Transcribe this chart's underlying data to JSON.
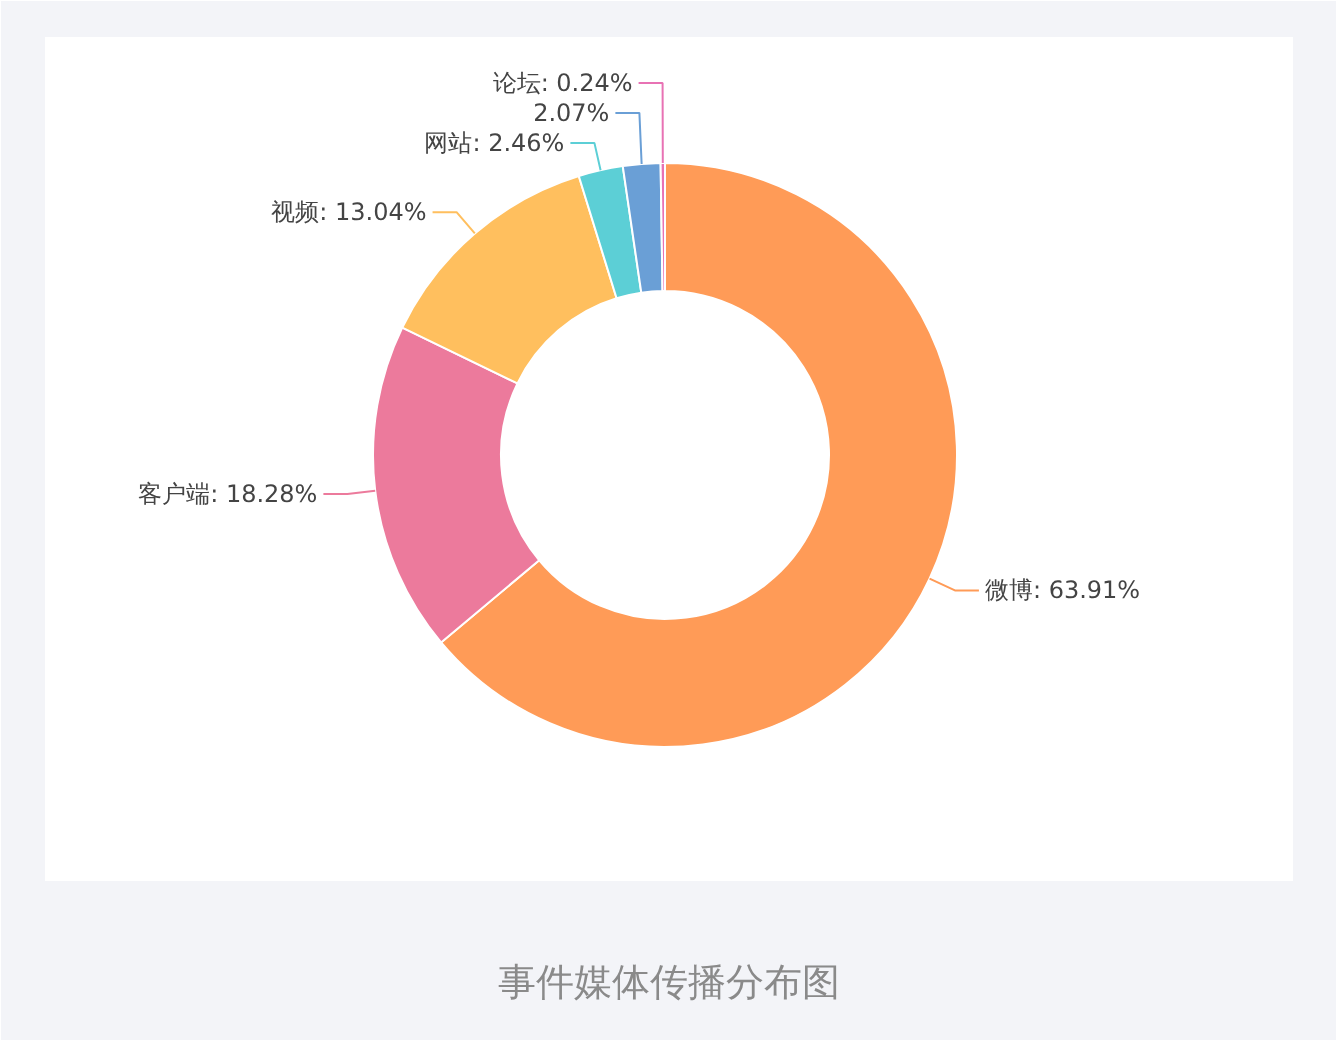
{
  "chart_data": {
    "type": "donut",
    "title": "事件媒体传播分布图",
    "categories": [
      "微博",
      "客户端",
      "视频",
      "网站",
      null,
      "论坛"
    ],
    "values": [
      63.91,
      18.28,
      13.04,
      2.46,
      2.07,
      0.24
    ],
    "value_labels": [
      "63.91%",
      "18.28%",
      "13.04%",
      "2.46%",
      "2.07%",
      "0.24%"
    ],
    "colors": [
      "#ff9b57",
      "#ec7a9c",
      "#ffbf5e",
      "#5ccfd6",
      "#6a9fd6",
      "#e872b4"
    ]
  }
}
